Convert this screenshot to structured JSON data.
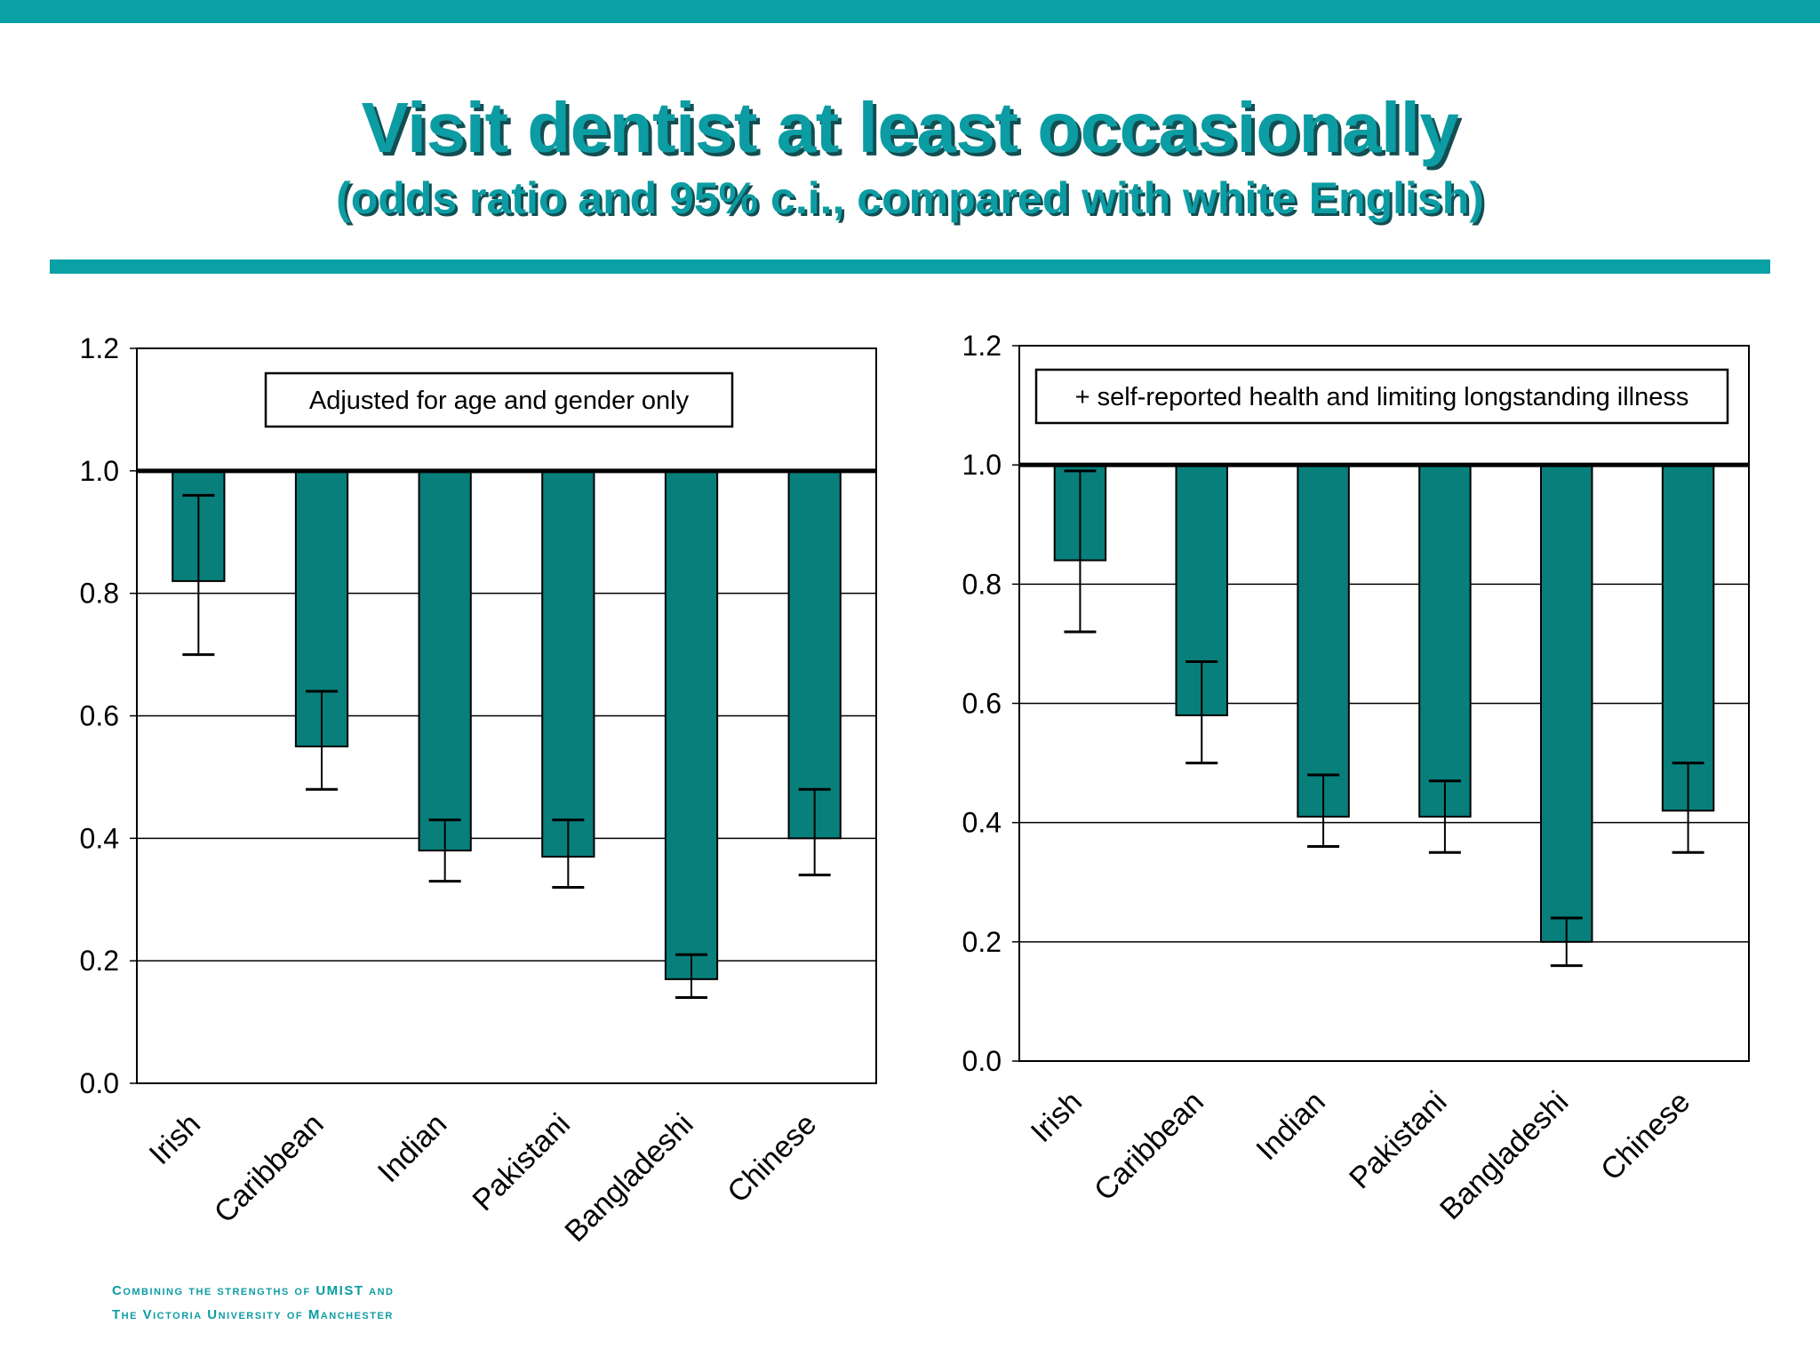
{
  "title": "Visit dentist at least occasionally",
  "subtitle": "(odds ratio and 95% c.i., compared with white English)",
  "footer": {
    "line1": "Combining the strengths of UMIST and",
    "line2": "The Victoria University of Manchester"
  },
  "colors": {
    "accent": "#0aa1a6",
    "bar": "#087f7b",
    "title_shadow": "#134e52"
  },
  "chart_data": [
    {
      "type": "bar",
      "annotation": "Adjusted for age and gender only",
      "categories": [
        "Irish",
        "Caribbean",
        "Indian",
        "Pakistani",
        "Bangladeshi",
        "Chinese"
      ],
      "values": [
        0.82,
        0.55,
        0.38,
        0.37,
        0.17,
        0.4
      ],
      "ci_lower": [
        0.7,
        0.48,
        0.33,
        0.32,
        0.14,
        0.34
      ],
      "ci_upper": [
        0.96,
        0.64,
        0.43,
        0.43,
        0.21,
        0.48
      ],
      "baseline": 1.0,
      "ylim": [
        0,
        1.2
      ],
      "yticks": [
        "0.0",
        "0.2",
        "0.4",
        "0.6",
        "0.8",
        "1.0",
        "1.2"
      ],
      "xlabel": "",
      "ylabel": "",
      "grid": true
    },
    {
      "type": "bar",
      "annotation": "+ self-reported health and limiting longstanding illness",
      "categories": [
        "Irish",
        "Caribbean",
        "Indian",
        "Pakistani",
        "Bangladeshi",
        "Chinese"
      ],
      "values": [
        0.84,
        0.58,
        0.41,
        0.41,
        0.2,
        0.42
      ],
      "ci_lower": [
        0.72,
        0.5,
        0.36,
        0.35,
        0.16,
        0.35
      ],
      "ci_upper": [
        0.99,
        0.67,
        0.48,
        0.47,
        0.24,
        0.5
      ],
      "baseline": 1.0,
      "ylim": [
        0,
        1.2
      ],
      "yticks": [
        "0.0",
        "0.2",
        "0.4",
        "0.6",
        "0.8",
        "1.0",
        "1.2"
      ],
      "xlabel": "",
      "ylabel": "",
      "grid": true
    }
  ]
}
